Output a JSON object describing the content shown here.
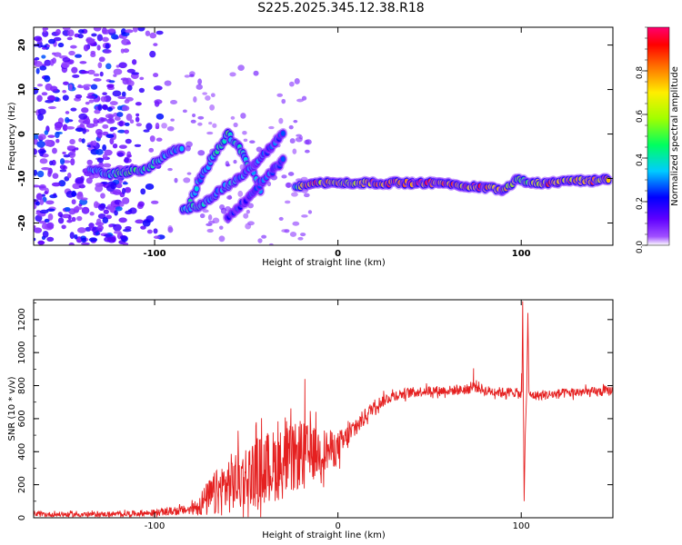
{
  "title": "S225.2025.345.12.38.R18",
  "chart_data": [
    {
      "type": "heatmap",
      "xlabel": "Height of straight line (km)",
      "ylabel": "Frequency (Hz)",
      "xlim": [
        -166,
        150
      ],
      "ylim": [
        -25,
        24
      ],
      "xticks": [
        {
          "v": -100,
          "label": "-100"
        },
        {
          "v": 0,
          "label": "0"
        },
        {
          "v": 100,
          "label": "100"
        }
      ],
      "yticks": [
        {
          "v": -20,
          "label": "-20"
        },
        {
          "v": -10,
          "label": "-10"
        },
        {
          "v": 0,
          "label": "0"
        },
        {
          "v": 10,
          "label": "10"
        },
        {
          "v": 20,
          "label": "20"
        }
      ],
      "colorbar": {
        "label": "Normalized spectral amplitude",
        "range": [
          0,
          1
        ],
        "ticks": [
          {
            "v": 0.0,
            "label": "0.0"
          },
          {
            "v": 0.2,
            "label": "0.2"
          },
          {
            "v": 0.4,
            "label": "0.4"
          },
          {
            "v": 0.6,
            "label": "0.6"
          },
          {
            "v": 0.8,
            "label": "0.8"
          }
        ],
        "colors": [
          "#ffffff",
          "#8000ff",
          "#0000ff",
          "#00ffff",
          "#00ff00",
          "#ffff00",
          "#ff8000",
          "#ff0000",
          "#ff0080"
        ]
      },
      "ridges": [
        {
          "name": "main",
          "points": [
            [
              -23,
              -12,
              0.45
            ],
            [
              -15,
              -11,
              0.9
            ],
            [
              -5,
              -11,
              0.8
            ],
            [
              5,
              -11,
              0.75
            ],
            [
              20,
              -11,
              0.85
            ],
            [
              40,
              -11,
              0.95
            ],
            [
              55,
              -11,
              0.9
            ],
            [
              65,
              -11.5,
              0.85
            ],
            [
              80,
              -12,
              0.9
            ],
            [
              90,
              -12.5,
              0.8
            ],
            [
              98,
              -10,
              0.55
            ],
            [
              105,
              -11,
              0.6
            ],
            [
              115,
              -11,
              0.85
            ],
            [
              130,
              -10.5,
              0.8
            ],
            [
              140,
              -10.5,
              0.85
            ],
            [
              148,
              -10,
              0.8
            ]
          ]
        },
        {
          "name": "left-band",
          "points": [
            [
              -135,
              -8,
              0.35
            ],
            [
              -125,
              -9,
              0.45
            ],
            [
              -115,
              -8.5,
              0.5
            ],
            [
              -105,
              -8,
              0.45
            ],
            [
              -95,
              -5,
              0.4
            ],
            [
              -85,
              -3,
              0.35
            ]
          ]
        },
        {
          "name": "arc-upper",
          "points": [
            [
              -80,
              -15,
              0.4
            ],
            [
              -75,
              -10,
              0.35
            ],
            [
              -68,
              -5,
              0.4
            ],
            [
              -60,
              0,
              0.45
            ],
            [
              -54,
              -3,
              0.4
            ],
            [
              -47,
              -8,
              0.35
            ],
            [
              -42,
              -13,
              0.3
            ]
          ]
        },
        {
          "name": "arc-lower",
          "points": [
            [
              -85,
              -17,
              0.45
            ],
            [
              -75,
              -16,
              0.4
            ],
            [
              -65,
              -13,
              0.35
            ],
            [
              -55,
              -10,
              0.35
            ],
            [
              -45,
              -7,
              0.3
            ],
            [
              -37,
              -3,
              0.3
            ],
            [
              -30,
              0,
              0.25
            ]
          ]
        },
        {
          "name": "tail",
          "points": [
            [
              -60,
              -19,
              0.25
            ],
            [
              -50,
              -15,
              0.25
            ],
            [
              -40,
              -10,
              0.3
            ],
            [
              -30,
              -6,
              0.25
            ]
          ]
        }
      ],
      "speckle_region": {
        "x": [
          -166,
          -95
        ],
        "y": [
          -25,
          24
        ]
      }
    },
    {
      "type": "line",
      "xlabel": "Height of straight line (km)",
      "ylabel": "SNR (10 * v/v)",
      "xlim": [
        -166,
        150
      ],
      "ylim": [
        0,
        1320
      ],
      "xticks": [
        {
          "v": -100,
          "label": "-100"
        },
        {
          "v": 0,
          "label": "0"
        },
        {
          "v": 100,
          "label": "100"
        }
      ],
      "yticks": [
        {
          "v": 0,
          "label": "0"
        },
        {
          "v": 200,
          "label": "200"
        },
        {
          "v": 400,
          "label": "400"
        },
        {
          "v": 600,
          "label": "600"
        },
        {
          "v": 800,
          "label": "800"
        },
        {
          "v": 1000,
          "label": "1000"
        },
        {
          "v": 1200,
          "label": "1200"
        }
      ],
      "line_color": "#e52020",
      "series": [
        {
          "x": [
            -166,
            -140,
            -120,
            -100,
            -80,
            -70,
            -60,
            -50,
            -40,
            -30,
            -20,
            -10,
            0,
            10,
            20,
            30,
            40,
            50,
            60,
            70,
            75,
            80,
            90,
            97,
            100,
            101,
            102,
            103,
            104,
            105,
            110,
            120,
            130,
            140,
            150
          ],
          "y": [
            20,
            20,
            22,
            30,
            50,
            120,
            200,
            250,
            300,
            330,
            380,
            400,
            420,
            550,
            680,
            740,
            760,
            770,
            770,
            775,
            800,
            770,
            760,
            760,
            740,
            1310,
            100,
            780,
            1240,
            740,
            740,
            750,
            760,
            760,
            770
          ],
          "noise": [
            15,
            15,
            15,
            20,
            30,
            120,
            180,
            200,
            220,
            220,
            200,
            150,
            100,
            60,
            40,
            35,
            30,
            30,
            30,
            30,
            40,
            30,
            30,
            30,
            30,
            0,
            0,
            0,
            0,
            30,
            30,
            30,
            30,
            30,
            30
          ]
        }
      ],
      "spikes": [
        {
          "x": -18,
          "y": 840
        },
        {
          "x": 74,
          "y": 905
        },
        {
          "x": 101,
          "y": 1310
        },
        {
          "x": 102,
          "y": 100
        },
        {
          "x": 104,
          "y": 1240
        }
      ]
    }
  ]
}
